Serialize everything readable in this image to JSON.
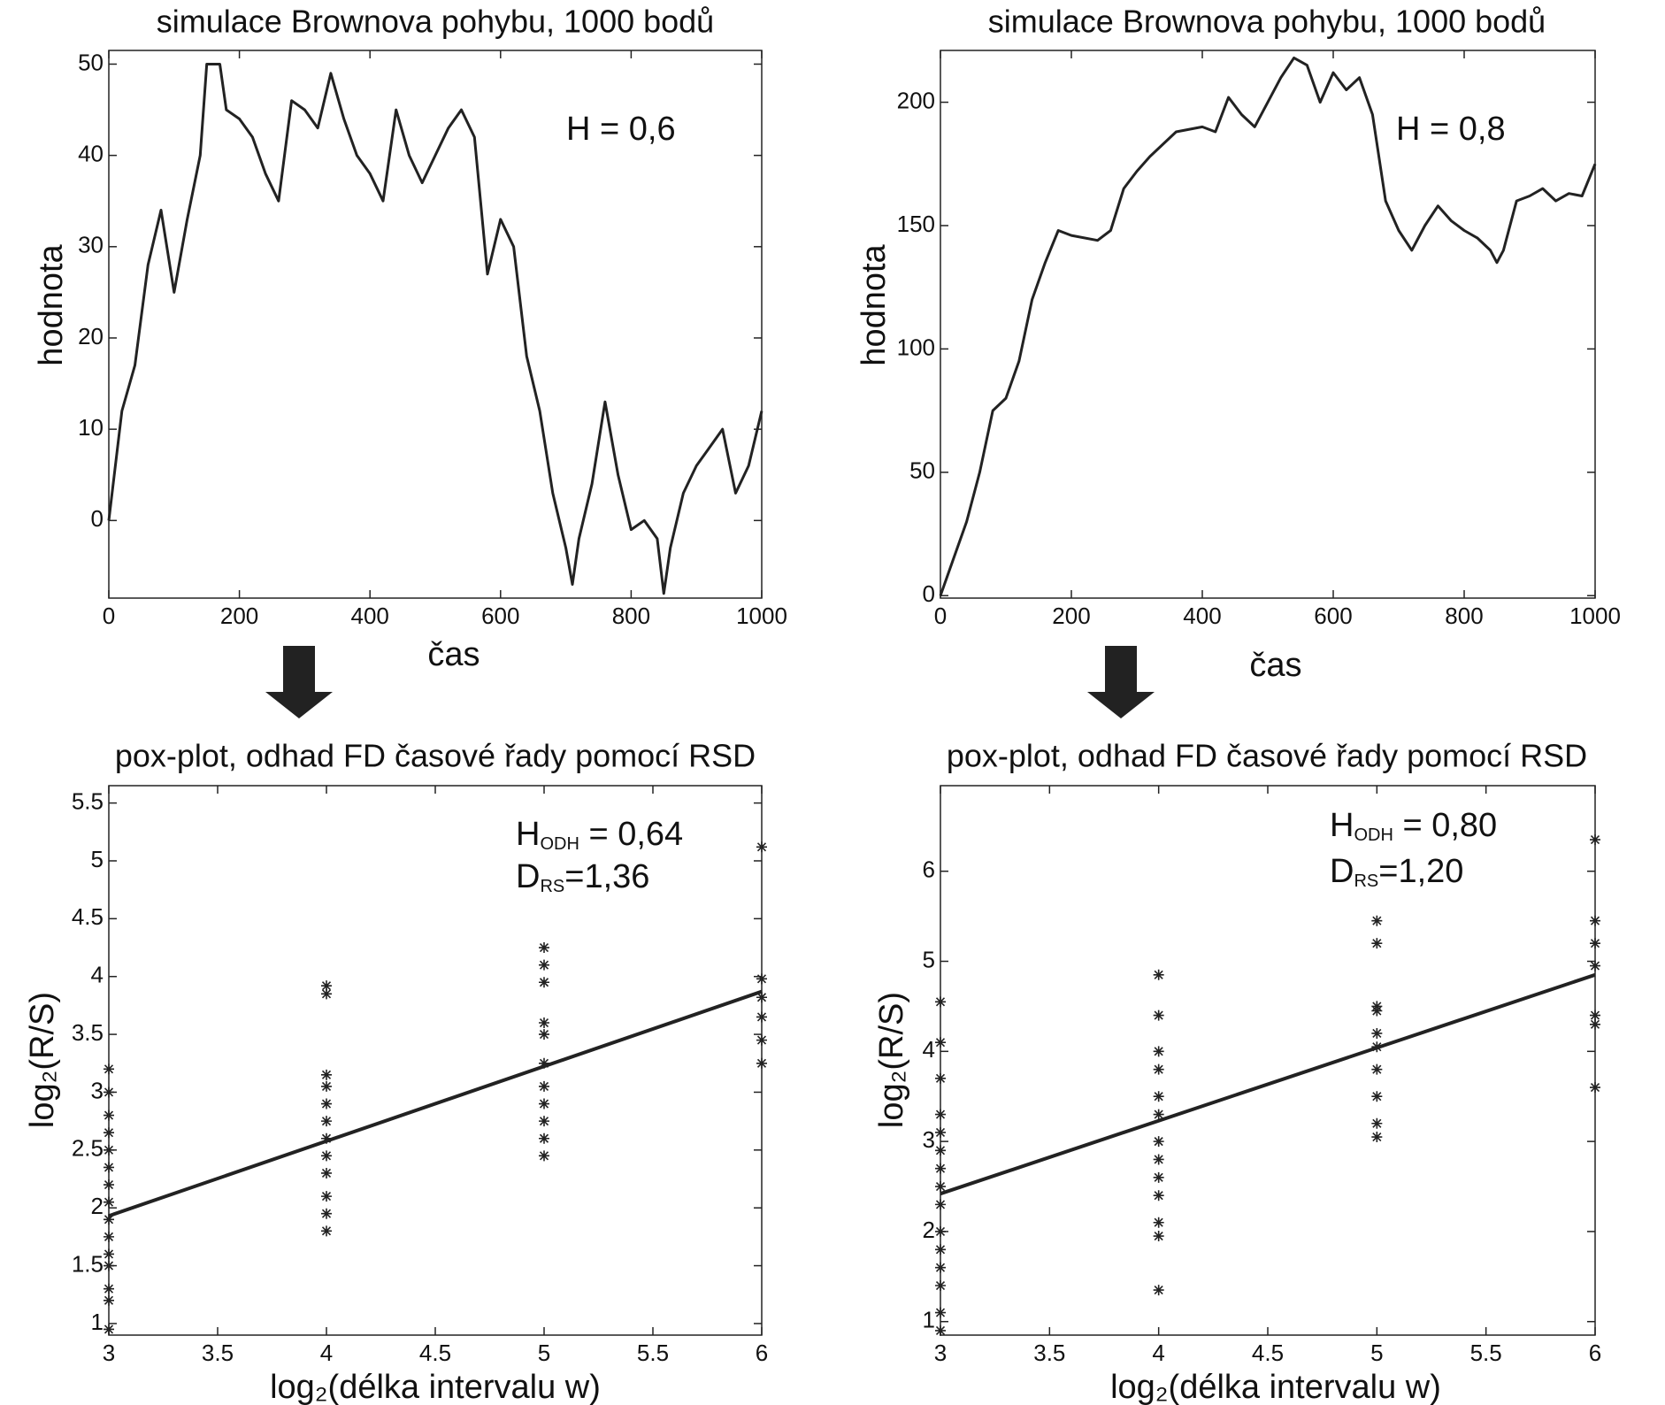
{
  "chart_data": [
    {
      "type": "line",
      "title": "simulace Brownova pohybu, 1000 bodů",
      "xlabel": "čas",
      "ylabel": "hodnota",
      "annotations": [
        {
          "text": "H = 0,6"
        }
      ],
      "color": "#222222",
      "x": [
        0,
        20,
        40,
        60,
        80,
        100,
        120,
        140,
        150,
        170,
        180,
        200,
        220,
        240,
        260,
        280,
        300,
        320,
        340,
        360,
        380,
        400,
        420,
        440,
        460,
        480,
        500,
        520,
        540,
        560,
        580,
        600,
        620,
        640,
        660,
        680,
        700,
        710,
        720,
        740,
        760,
        780,
        800,
        820,
        840,
        850,
        860,
        880,
        900,
        920,
        940,
        960,
        980,
        1000
      ],
      "values": [
        0,
        12,
        17,
        28,
        34,
        25,
        33,
        40,
        50,
        50,
        45,
        44,
        42,
        38,
        35,
        46,
        45,
        43,
        49,
        44,
        40,
        38,
        35,
        45,
        40,
        37,
        40,
        43,
        45,
        42,
        27,
        33,
        30,
        18,
        12,
        3,
        -3,
        -7,
        -2,
        4,
        13,
        5,
        -1,
        0,
        -2,
        -8,
        -3,
        3,
        6,
        8,
        10,
        3,
        6,
        12
      ],
      "xlim": [
        0,
        1000
      ],
      "xticks": [
        0,
        200,
        400,
        600,
        800,
        1000
      ],
      "ylim": [
        -8.5,
        51.5
      ],
      "yticks": [
        0,
        10,
        20,
        30,
        40,
        50
      ]
    },
    {
      "type": "line",
      "title": "simulace Brownova pohybu, 1000 bodů",
      "xlabel": "čas",
      "ylabel": "hodnota",
      "annotations": [
        {
          "text": "H = 0,8"
        }
      ],
      "color": "#222222",
      "x": [
        0,
        20,
        40,
        60,
        80,
        100,
        120,
        140,
        160,
        180,
        200,
        240,
        260,
        280,
        300,
        320,
        360,
        400,
        420,
        440,
        460,
        480,
        500,
        520,
        540,
        560,
        580,
        600,
        620,
        640,
        660,
        680,
        700,
        720,
        740,
        760,
        780,
        800,
        820,
        840,
        850,
        860,
        880,
        900,
        920,
        940,
        960,
        980,
        1000
      ],
      "values": [
        0,
        15,
        30,
        50,
        75,
        80,
        95,
        120,
        135,
        148,
        146,
        144,
        148,
        165,
        172,
        178,
        188,
        190,
        188,
        202,
        195,
        190,
        200,
        210,
        218,
        215,
        200,
        212,
        205,
        210,
        195,
        160,
        148,
        140,
        150,
        158,
        152,
        148,
        145,
        140,
        135,
        140,
        160,
        162,
        165,
        160,
        163,
        162,
        175
      ],
      "xlim": [
        0,
        1000
      ],
      "xticks": [
        0,
        200,
        400,
        600,
        800,
        1000
      ],
      "ylim": [
        -1,
        221
      ],
      "yticks": [
        0,
        50,
        100,
        150,
        200
      ]
    },
    {
      "type": "scatter",
      "title": "pox-plot, odhad FD časové řady pomocí RSD",
      "xlabel": "log₂(délka intervalu w)",
      "ylabel": "log₂(R/S)",
      "annotations": [
        {
          "main": "H",
          "sub": "ODH",
          "rest": " = 0,64"
        },
        {
          "main": "D",
          "sub": "RS",
          "rest": "=1,36"
        }
      ],
      "color": "#222222",
      "points": {
        "x": [
          3,
          3,
          3,
          3,
          3,
          3,
          3,
          3,
          3,
          3,
          3,
          3,
          3,
          3,
          3,
          4,
          4,
          4,
          4,
          4,
          4,
          4,
          4,
          4,
          4,
          4,
          4,
          5,
          5,
          5,
          5,
          5,
          5,
          5,
          5,
          5,
          5,
          5,
          6,
          6,
          6,
          6,
          6,
          6
        ],
        "y": [
          0.95,
          1.2,
          1.3,
          1.5,
          1.6,
          1.75,
          1.9,
          2.05,
          2.2,
          2.35,
          2.5,
          2.65,
          2.8,
          3.0,
          3.2,
          1.8,
          1.95,
          2.1,
          2.3,
          2.45,
          2.6,
          2.75,
          2.9,
          3.05,
          3.15,
          3.85,
          3.92,
          2.45,
          2.6,
          2.75,
          2.9,
          3.05,
          3.25,
          3.5,
          3.6,
          3.95,
          4.1,
          4.25,
          3.25,
          3.45,
          3.65,
          3.82,
          3.98,
          5.12
        ]
      },
      "fit": {
        "x": [
          3,
          6
        ],
        "y": [
          1.93,
          3.87
        ]
      },
      "xlim": [
        3,
        6
      ],
      "xticks": [
        3,
        3.5,
        4,
        4.5,
        5,
        5.5,
        6
      ],
      "ylim": [
        0.9,
        5.65
      ],
      "yticks": [
        1,
        1.5,
        2,
        2.5,
        3,
        3.5,
        4,
        4.5,
        5,
        5.5
      ]
    },
    {
      "type": "scatter",
      "title": "pox-plot, odhad FD časové řady pomocí RSD",
      "xlabel": "log₂(délka intervalu w)",
      "ylabel": "log₂(R/S)",
      "annotations": [
        {
          "main": "H",
          "sub": "ODH",
          "rest": " = 0,80"
        },
        {
          "main": "D",
          "sub": "RS",
          "rest": "=1,20"
        }
      ],
      "color": "#222222",
      "points": {
        "x": [
          3,
          3,
          3,
          3,
          3,
          3,
          3,
          3,
          3,
          3,
          3,
          3,
          3,
          3,
          3,
          4,
          4,
          4,
          4,
          4,
          4,
          4,
          4,
          4,
          4,
          4,
          4,
          4,
          5,
          5,
          5,
          5,
          5,
          5,
          5,
          5,
          5,
          5,
          6,
          6,
          6,
          6,
          6,
          6,
          6
        ],
        "y": [
          0.9,
          1.1,
          1.4,
          1.6,
          1.8,
          2.0,
          2.3,
          2.5,
          2.7,
          2.9,
          3.1,
          3.3,
          3.7,
          4.1,
          4.55,
          1.35,
          1.95,
          2.1,
          2.4,
          2.6,
          2.8,
          3.0,
          3.3,
          3.5,
          3.8,
          4.0,
          4.4,
          4.85,
          3.05,
          3.2,
          3.5,
          3.8,
          4.05,
          4.2,
          4.45,
          4.5,
          5.2,
          5.45,
          3.6,
          4.3,
          4.4,
          4.95,
          5.2,
          5.45,
          6.35
        ]
      },
      "fit": {
        "x": [
          3,
          6
        ],
        "y": [
          2.42,
          4.85
        ]
      },
      "xlim": [
        3,
        6
      ],
      "xticks": [
        3,
        3.5,
        4,
        4.5,
        5,
        5.5,
        6
      ],
      "ylim": [
        0.85,
        6.95
      ],
      "yticks": [
        1,
        2,
        3,
        4,
        5,
        6
      ]
    }
  ]
}
